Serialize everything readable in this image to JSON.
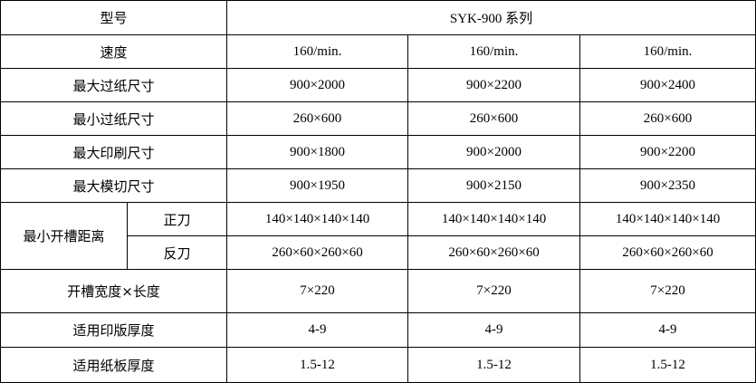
{
  "table": {
    "rows": [
      [
        "型号",
        "SYK-900 系列"
      ],
      [
        "速度",
        "160/min.",
        "160/min.",
        "160/min."
      ],
      [
        "最大过纸尺寸",
        "900×2000",
        "900×2200",
        "900×2400"
      ],
      [
        "最小过纸尺寸",
        "260×600",
        "260×600",
        "260×600"
      ],
      [
        "最大印刷尺寸",
        "900×1800",
        "900×2000",
        "900×2200"
      ],
      [
        "最大模切尺寸",
        "900×1950",
        "900×2150",
        "900×2350"
      ],
      [
        "最小开槽距离",
        "正刀",
        "140×140×140×140",
        "140×140×140×140",
        "140×140×140×140"
      ],
      [
        "反刀",
        "260×60×260×60",
        "260×60×260×60",
        "260×60×260×60"
      ],
      [
        "开槽宽度×长度",
        "7×220",
        "7×220",
        "7×220"
      ],
      [
        "适用印版厚度",
        "4-9",
        "4-9",
        "4-9"
      ],
      [
        "适用纸板厚度",
        "1.5-12",
        "1.5-12",
        "1.5-12"
      ]
    ]
  }
}
